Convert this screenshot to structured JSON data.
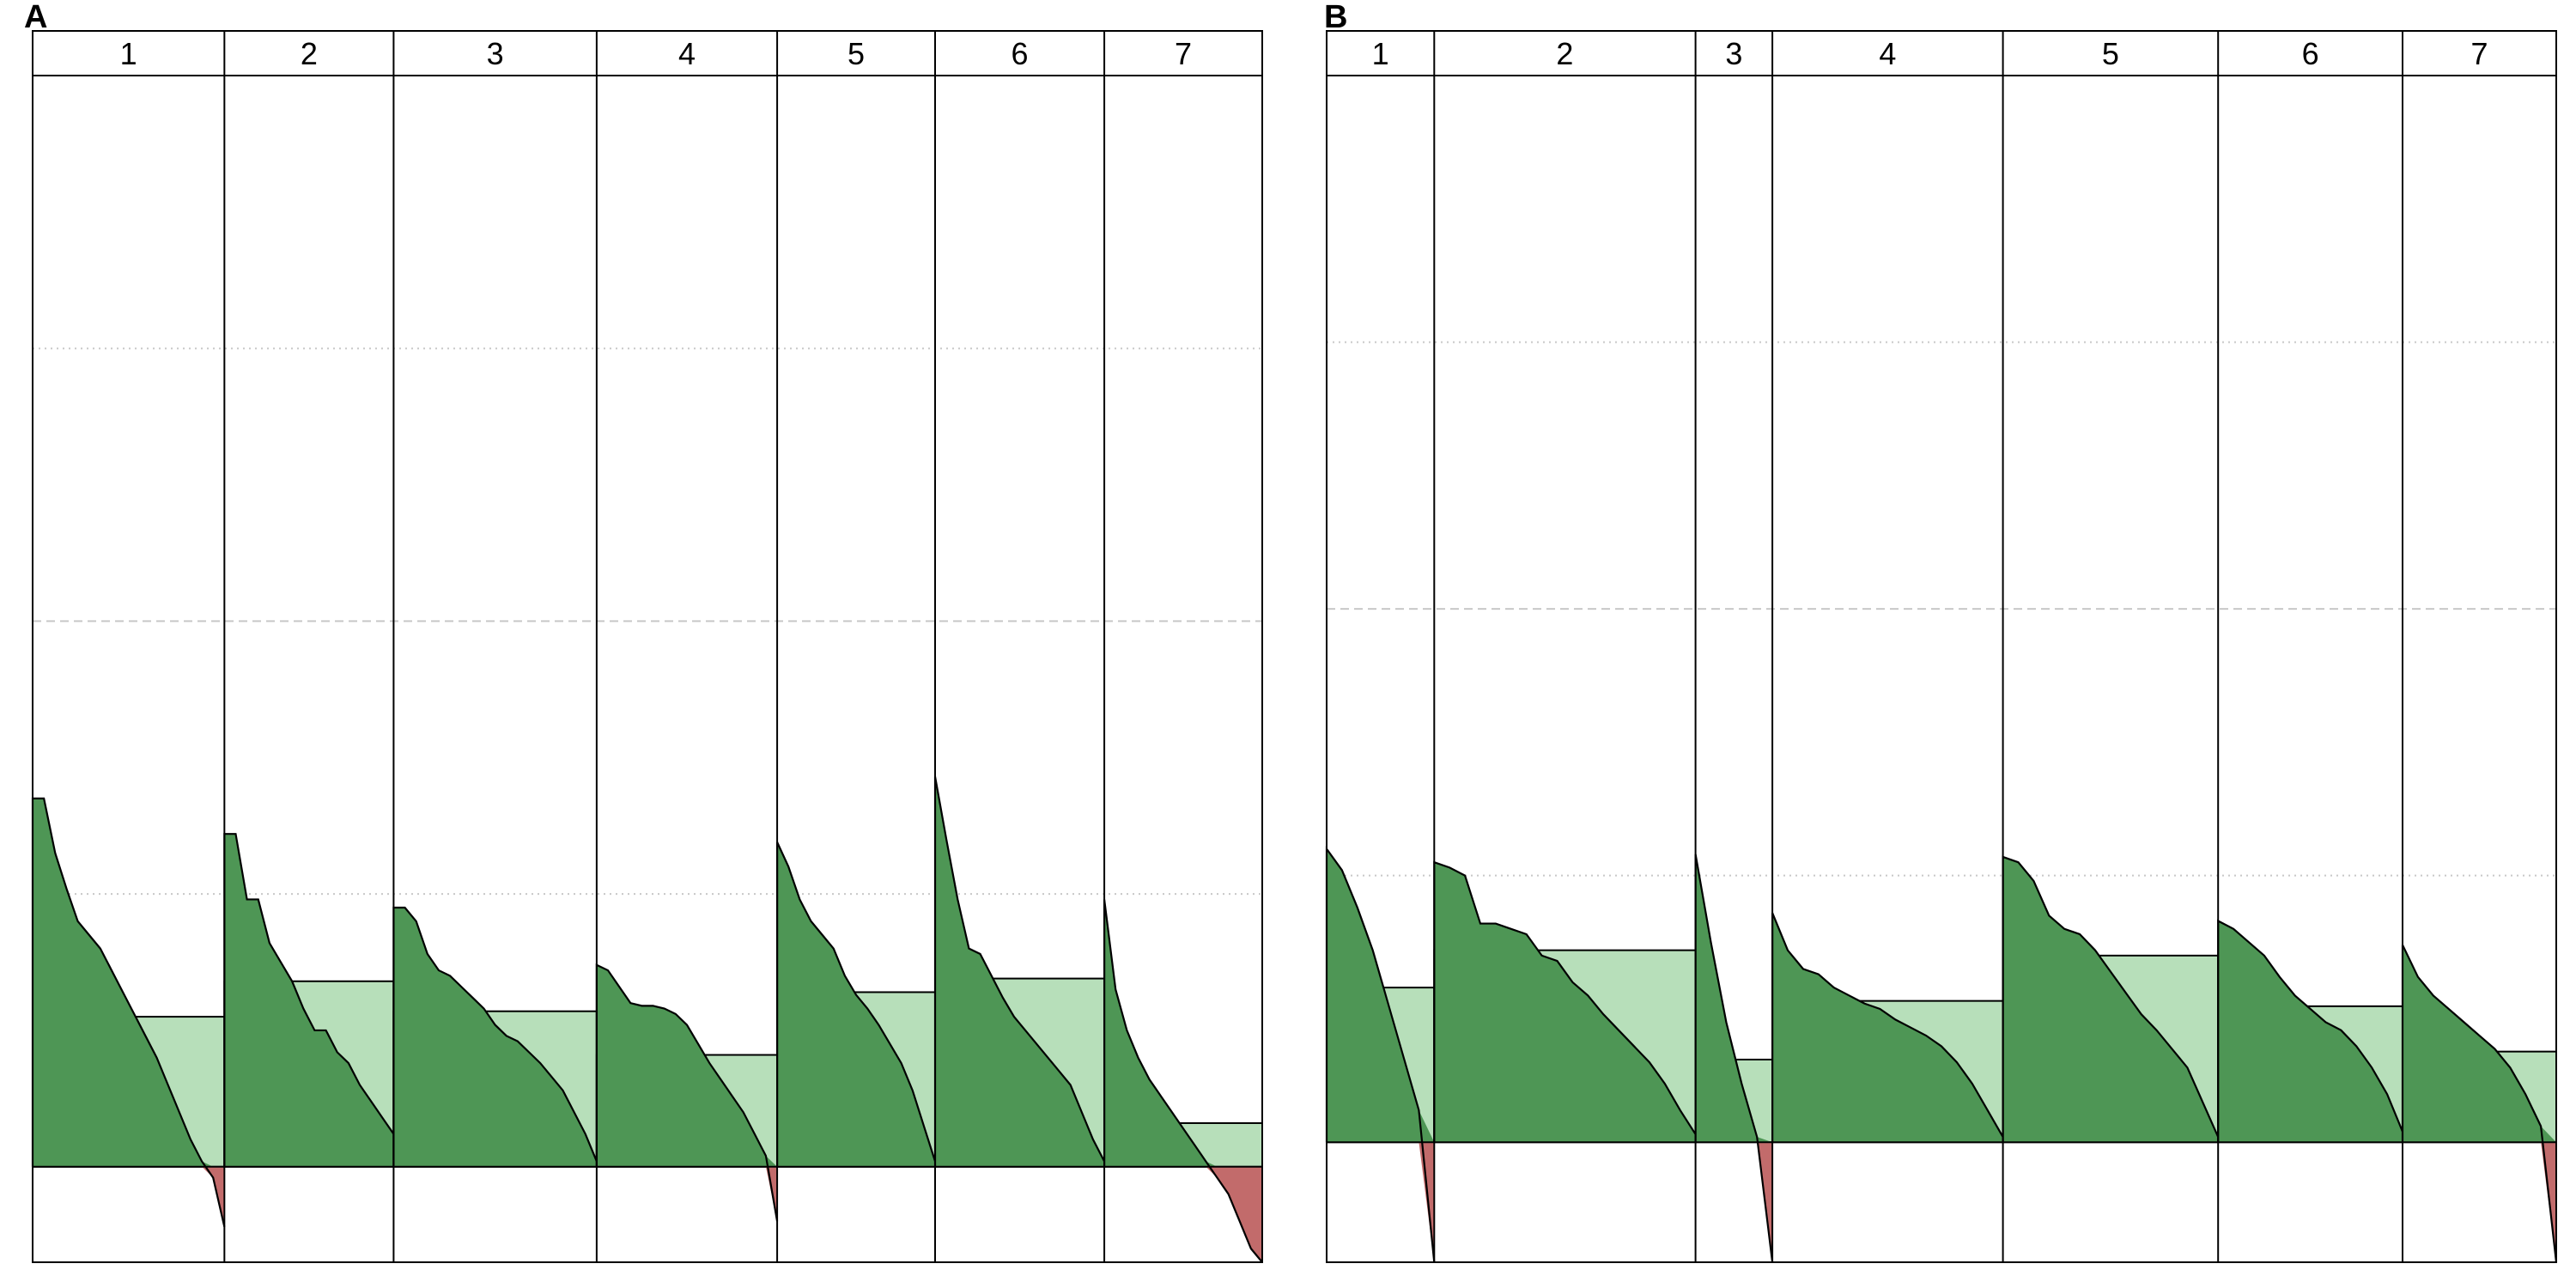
{
  "chart_data": [
    {
      "type": "area",
      "panel": "A",
      "xlabel": "",
      "ylabel": "",
      "ylim": [
        -0.35,
        4.0
      ],
      "gridlines": [
        1,
        2,
        3
      ],
      "grid": true,
      "colors": {
        "positive": "#4e9655",
        "mean": "#b7dfba",
        "negative": "#c26b6b"
      },
      "clusters": [
        {
          "label": "1",
          "size": 17,
          "mean": 0.55,
          "silhouette": [
            1.35,
            1.35,
            1.15,
            1.02,
            0.9,
            0.85,
            0.8,
            0.72,
            0.64,
            0.56,
            0.48,
            0.4,
            0.3,
            0.2,
            0.1,
            0.02,
            -0.04,
            -0.22
          ]
        },
        {
          "label": "2",
          "size": 15,
          "mean": 0.68,
          "silhouette": [
            1.22,
            1.22,
            0.98,
            0.98,
            0.82,
            0.75,
            0.68,
            0.58,
            0.5,
            0.5,
            0.42,
            0.38,
            0.3,
            0.24,
            0.18,
            0.12
          ]
        },
        {
          "label": "3",
          "size": 18,
          "mean": 0.57,
          "silhouette": [
            0.95,
            0.95,
            0.9,
            0.78,
            0.72,
            0.7,
            0.66,
            0.62,
            0.58,
            0.52,
            0.48,
            0.46,
            0.42,
            0.38,
            0.33,
            0.28,
            0.2,
            0.12,
            0.02
          ]
        },
        {
          "label": "4",
          "size": 16,
          "mean": 0.41,
          "silhouette": [
            0.74,
            0.72,
            0.66,
            0.6,
            0.59,
            0.59,
            0.58,
            0.56,
            0.52,
            0.45,
            0.38,
            0.32,
            0.26,
            0.2,
            0.12,
            0.04,
            -0.2
          ]
        },
        {
          "label": "5",
          "size": 14,
          "mean": 0.64,
          "silhouette": [
            1.19,
            1.1,
            0.98,
            0.9,
            0.85,
            0.8,
            0.7,
            0.63,
            0.58,
            0.52,
            0.45,
            0.38,
            0.28,
            0.15,
            0.02
          ]
        },
        {
          "label": "6",
          "size": 15,
          "mean": 0.69,
          "silhouette": [
            1.43,
            1.2,
            0.98,
            0.8,
            0.78,
            0.7,
            0.62,
            0.55,
            0.5,
            0.45,
            0.4,
            0.35,
            0.3,
            0.2,
            0.1,
            0.02
          ]
        },
        {
          "label": "7",
          "size": 14,
          "mean": 0.16,
          "silhouette": [
            0.98,
            0.65,
            0.5,
            0.4,
            0.32,
            0.26,
            0.2,
            0.14,
            0.08,
            0.02,
            -0.04,
            -0.1,
            -0.2,
            -0.3,
            -0.35
          ]
        }
      ]
    },
    {
      "type": "area",
      "panel": "B",
      "xlabel": "",
      "ylabel": "",
      "ylim": [
        -0.45,
        4.0
      ],
      "gridlines": [
        1,
        2,
        3
      ],
      "grid": true,
      "colors": {
        "positive": "#4e9655",
        "mean": "#b7dfba",
        "negative": "#c26b6b"
      },
      "clusters": [
        {
          "label": "1",
          "size": 7,
          "mean": 0.58,
          "silhouette": [
            1.1,
            1.02,
            0.88,
            0.72,
            0.52,
            0.32,
            0.12,
            -0.45
          ]
        },
        {
          "label": "2",
          "size": 17,
          "mean": 0.72,
          "silhouette": [
            1.05,
            1.03,
            1.0,
            0.82,
            0.82,
            0.8,
            0.78,
            0.7,
            0.68,
            0.6,
            0.55,
            0.48,
            0.42,
            0.36,
            0.3,
            0.22,
            0.12,
            0.03
          ]
        },
        {
          "label": "3",
          "size": 5,
          "mean": 0.31,
          "silhouette": [
            1.08,
            0.75,
            0.45,
            0.22,
            0.02,
            -0.45
          ]
        },
        {
          "label": "4",
          "size": 15,
          "mean": 0.53,
          "silhouette": [
            0.86,
            0.72,
            0.65,
            0.63,
            0.58,
            0.55,
            0.52,
            0.5,
            0.46,
            0.43,
            0.4,
            0.36,
            0.3,
            0.22,
            0.12,
            0.02
          ]
        },
        {
          "label": "5",
          "size": 14,
          "mean": 0.7,
          "silhouette": [
            1.07,
            1.05,
            0.98,
            0.85,
            0.8,
            0.78,
            0.72,
            0.64,
            0.56,
            0.48,
            0.42,
            0.35,
            0.28,
            0.15,
            0.02
          ]
        },
        {
          "label": "6",
          "size": 12,
          "mean": 0.51,
          "silhouette": [
            0.83,
            0.8,
            0.75,
            0.7,
            0.62,
            0.55,
            0.5,
            0.45,
            0.42,
            0.36,
            0.28,
            0.18,
            0.04
          ]
        },
        {
          "label": "7",
          "size": 10,
          "mean": 0.34,
          "silhouette": [
            0.74,
            0.62,
            0.55,
            0.5,
            0.45,
            0.4,
            0.35,
            0.28,
            0.18,
            0.06,
            -0.45
          ]
        }
      ]
    }
  ]
}
